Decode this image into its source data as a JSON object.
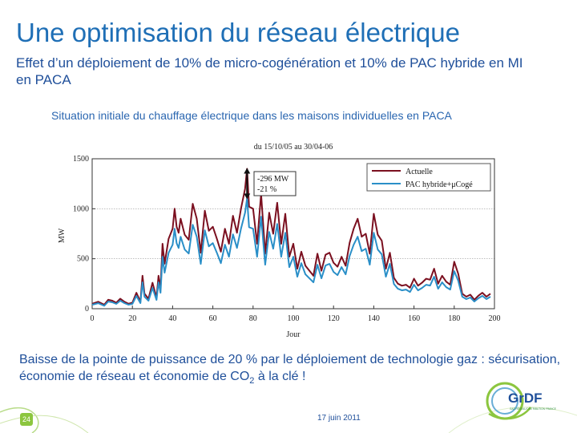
{
  "slide": {
    "title": "Une optimisation du réseau électrique",
    "subtitle": "Effet d’un déploiement de 10% de micro-cogénération et 10% de PAC hybride en MI en PACA",
    "caption": "Situation initiale du chauffage électrique dans les maisons individuelles en PACA",
    "conclusion_before": "Baisse de la pointe de puissance de 20 % par le déploiement de technologie gaz : sécurisation, économie de réseau et économie de CO",
    "conclusion_sub": "2",
    "conclusion_after": " à la clé !",
    "page_number": "24",
    "date": "17 juin 2011",
    "logo_text": "GrDF",
    "logo_tagline": "GAZ RÉSEAU DISTRIBUTION FRANCE"
  },
  "colors": {
    "title": "#1f6fb6",
    "text": "#1f4f9a",
    "series_actuelle": "#7b1020",
    "series_pac": "#2a8fc8",
    "accent_green": "#8cc63f"
  },
  "chart_data": {
    "type": "line",
    "title": "du 15/10/05 au 30/04-06",
    "xlabel": "Jour",
    "ylabel": "MW",
    "xlim": [
      0,
      200
    ],
    "ylim": [
      0,
      1500
    ],
    "xticks": [
      0,
      20,
      40,
      60,
      80,
      100,
      120,
      140,
      160,
      180,
      200
    ],
    "yticks": [
      0,
      500,
      1000,
      1500
    ],
    "legend_position": "top-right",
    "annotation": [
      "-296 MW",
      "-21 %"
    ],
    "annotation_x": 77,
    "annotation_range": [
      1400,
      1104
    ],
    "series": [
      {
        "name": "Actuelle",
        "x": [
          0,
          3,
          6,
          8,
          10,
          12,
          14,
          16,
          18,
          20,
          22,
          24,
          25,
          26,
          28,
          30,
          32,
          33,
          34,
          35,
          36,
          38,
          40,
          41,
          42,
          43,
          44,
          46,
          48,
          50,
          52,
          54,
          56,
          58,
          60,
          62,
          64,
          66,
          68,
          70,
          72,
          74,
          76,
          77,
          78,
          80,
          82,
          84,
          86,
          88,
          90,
          92,
          94,
          96,
          98,
          100,
          102,
          104,
          106,
          108,
          110,
          112,
          114,
          116,
          118,
          120,
          122,
          124,
          126,
          128,
          130,
          132,
          134,
          136,
          138,
          140,
          142,
          144,
          146,
          148,
          150,
          152,
          154,
          156,
          158,
          160,
          162,
          164,
          166,
          168,
          170,
          172,
          174,
          176,
          178,
          180,
          182,
          184,
          186,
          188,
          190,
          192,
          194,
          196,
          198
        ],
        "values": [
          50,
          70,
          40,
          90,
          80,
          60,
          100,
          70,
          50,
          60,
          160,
          70,
          330,
          150,
          100,
          260,
          110,
          330,
          200,
          650,
          450,
          700,
          800,
          1000,
          820,
          760,
          900,
          740,
          690,
          1050,
          900,
          560,
          980,
          780,
          820,
          700,
          570,
          800,
          650,
          930,
          760,
          1000,
          1200,
          1400,
          1020,
          1000,
          650,
          1150,
          550,
          960,
          750,
          1060,
          650,
          950,
          520,
          650,
          400,
          570,
          430,
          380,
          330,
          550,
          380,
          540,
          560,
          460,
          420,
          520,
          430,
          660,
          800,
          900,
          720,
          750,
          550,
          950,
          740,
          680,
          400,
          560,
          310,
          250,
          230,
          240,
          210,
          300,
          230,
          260,
          300,
          290,
          400,
          250,
          330,
          270,
          240,
          470,
          350,
          150,
          120,
          140,
          90,
          130,
          160,
          120,
          150
        ]
      },
      {
        "name": "PAC hybride+μCogé",
        "x": [
          0,
          3,
          6,
          8,
          10,
          12,
          14,
          16,
          18,
          20,
          22,
          24,
          25,
          26,
          28,
          30,
          32,
          33,
          34,
          35,
          36,
          38,
          40,
          41,
          42,
          43,
          44,
          46,
          48,
          50,
          52,
          54,
          56,
          58,
          60,
          62,
          64,
          66,
          68,
          70,
          72,
          74,
          76,
          77,
          78,
          80,
          82,
          84,
          86,
          88,
          90,
          92,
          94,
          96,
          98,
          100,
          102,
          104,
          106,
          108,
          110,
          112,
          114,
          116,
          118,
          120,
          122,
          124,
          126,
          128,
          130,
          132,
          134,
          136,
          138,
          140,
          142,
          144,
          146,
          148,
          150,
          152,
          154,
          156,
          158,
          160,
          162,
          164,
          166,
          168,
          170,
          172,
          174,
          176,
          178,
          180,
          182,
          184,
          186,
          188,
          190,
          192,
          194,
          196,
          198
        ],
        "values": [
          40,
          55,
          30,
          72,
          64,
          48,
          80,
          56,
          40,
          48,
          128,
          56,
          264,
          120,
          80,
          208,
          88,
          264,
          160,
          520,
          360,
          560,
          640,
          800,
          656,
          608,
          720,
          592,
          552,
          840,
          720,
          448,
          784,
          624,
          656,
          560,
          456,
          640,
          520,
          744,
          608,
          800,
          960,
          1104,
          816,
          800,
          520,
          920,
          440,
          768,
          600,
          848,
          520,
          760,
          416,
          520,
          320,
          456,
          344,
          304,
          264,
          440,
          304,
          432,
          448,
          368,
          336,
          416,
          344,
          528,
          640,
          720,
          576,
          600,
          440,
          760,
          592,
          544,
          320,
          448,
          248,
          200,
          184,
          192,
          168,
          240,
          184,
          208,
          240,
          232,
          320,
          200,
          264,
          216,
          192,
          376,
          280,
          120,
          96,
          112,
          72,
          104,
          128,
          96,
          120
        ]
      }
    ]
  }
}
